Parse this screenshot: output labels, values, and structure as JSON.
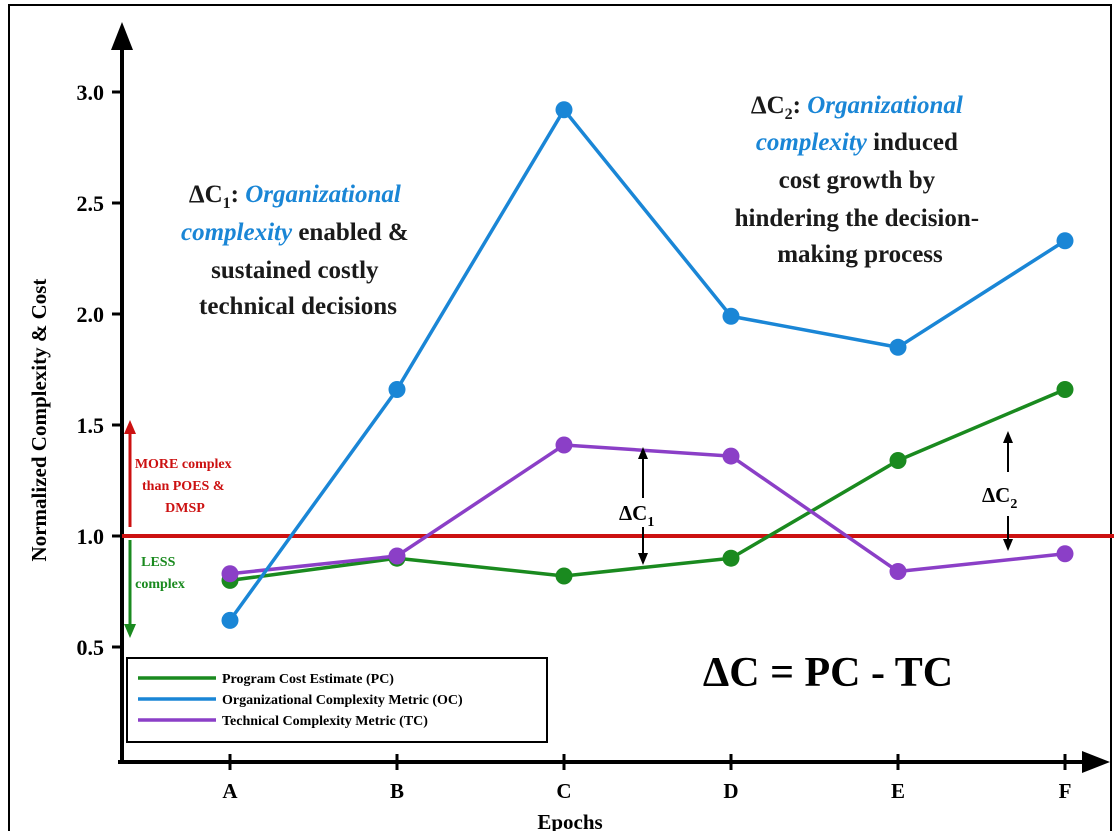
{
  "chart_data": {
    "type": "line",
    "categories": [
      "A",
      "B",
      "C",
      "D",
      "E",
      "F"
    ],
    "xlabel": "Epochs",
    "ylabel": "Normalized Complexity & Cost",
    "ylim": [
      0,
      3.2
    ],
    "yticks": [
      "0.5",
      "1.0",
      "1.5",
      "2.0",
      "2.5",
      "3.0"
    ],
    "ytick_values": [
      0.5,
      1.0,
      1.5,
      2.0,
      2.5,
      3.0
    ],
    "series": [
      {
        "name": "Program Cost Estimate (PC)",
        "color": "#1a8a1f",
        "values": [
          0.8,
          0.9,
          0.82,
          0.9,
          1.34,
          1.66
        ]
      },
      {
        "name": "Organizational Complexity Metric (OC)",
        "color": "#1a86d6",
        "values": [
          0.62,
          1.66,
          2.92,
          1.99,
          1.85,
          2.33
        ]
      },
      {
        "name": "Technical Complexity Metric (TC)",
        "color": "#8b3fc7",
        "values": [
          0.83,
          0.91,
          1.41,
          1.36,
          0.84,
          0.92
        ]
      }
    ],
    "reference_line": {
      "value": 1.0,
      "color": "#cc1111"
    },
    "legend_position": "bottom-left",
    "grid": false
  },
  "annotations": {
    "more_complex": [
      "MORE complex",
      "than POES &",
      "DMSP"
    ],
    "less_complex": [
      "LESS",
      "complex"
    ],
    "delta_c1_main": "ΔC",
    "delta_c1_sub": "1",
    "delta_c2_main": "ΔC",
    "delta_c2_sub": "2",
    "formula": "ΔC = PC - TC",
    "callout1": {
      "prefix": "ΔC",
      "sub": "1",
      "colon": ": ",
      "italic1": "Organizational",
      "italic2": "complexity",
      "rest1": " enabled &",
      "line3": "sustained costly",
      "line4": "technical decisions"
    },
    "callout2": {
      "prefix": "ΔC",
      "sub": "2",
      "colon": ": ",
      "italic1": "Organizational",
      "italic2": "complexity",
      "rest1": " induced",
      "line3": "cost growth by",
      "line4": "hindering the decision-",
      "line5": "making process"
    }
  },
  "colors": {
    "axis": "#000000",
    "italic_blue": "#1a86d6",
    "more_red": "#cc1111",
    "less_green": "#1a8a1f"
  }
}
